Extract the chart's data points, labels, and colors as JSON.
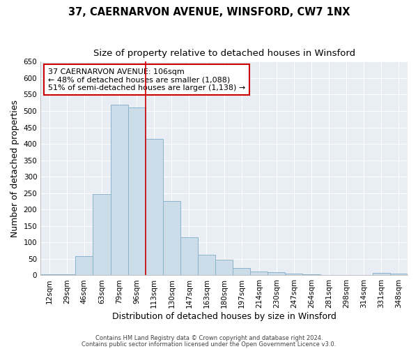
{
  "title": "37, CAERNARVON AVENUE, WINSFORD, CW7 1NX",
  "subtitle": "Size of property relative to detached houses in Winsford",
  "xlabel": "Distribution of detached houses by size in Winsford",
  "ylabel": "Number of detached properties",
  "categories": [
    "12sqm",
    "29sqm",
    "46sqm",
    "63sqm",
    "79sqm",
    "96sqm",
    "113sqm",
    "130sqm",
    "147sqm",
    "163sqm",
    "180sqm",
    "197sqm",
    "214sqm",
    "230sqm",
    "247sqm",
    "264sqm",
    "281sqm",
    "298sqm",
    "314sqm",
    "331sqm",
    "348sqm"
  ],
  "values": [
    3,
    3,
    59,
    248,
    520,
    510,
    415,
    227,
    115,
    62,
    47,
    22,
    12,
    9,
    6,
    4,
    1,
    1,
    1,
    7,
    5
  ],
  "bar_color": "#ccdce8",
  "bar_edge_color": "#8ab4cc",
  "vline_x": 5.5,
  "vline_color": "#cc0000",
  "annotation_text": "37 CAERNARVON AVENUE: 106sqm\n← 48% of detached houses are smaller (1,088)\n51% of semi-detached houses are larger (1,138) →",
  "annotation_box_color": "#ffffff",
  "annotation_box_edge_color": "#cc0000",
  "ylim": [
    0,
    650
  ],
  "yticks": [
    0,
    50,
    100,
    150,
    200,
    250,
    300,
    350,
    400,
    450,
    500,
    550,
    600,
    650
  ],
  "footnote1": "Contains HM Land Registry data © Crown copyright and database right 2024.",
  "footnote2": "Contains public sector information licensed under the Open Government Licence v3.0.",
  "fig_bg_color": "#ffffff",
  "plot_bg_color": "#e8eef4",
  "title_fontsize": 10.5,
  "subtitle_fontsize": 9.5,
  "tick_fontsize": 7.5,
  "label_fontsize": 9
}
